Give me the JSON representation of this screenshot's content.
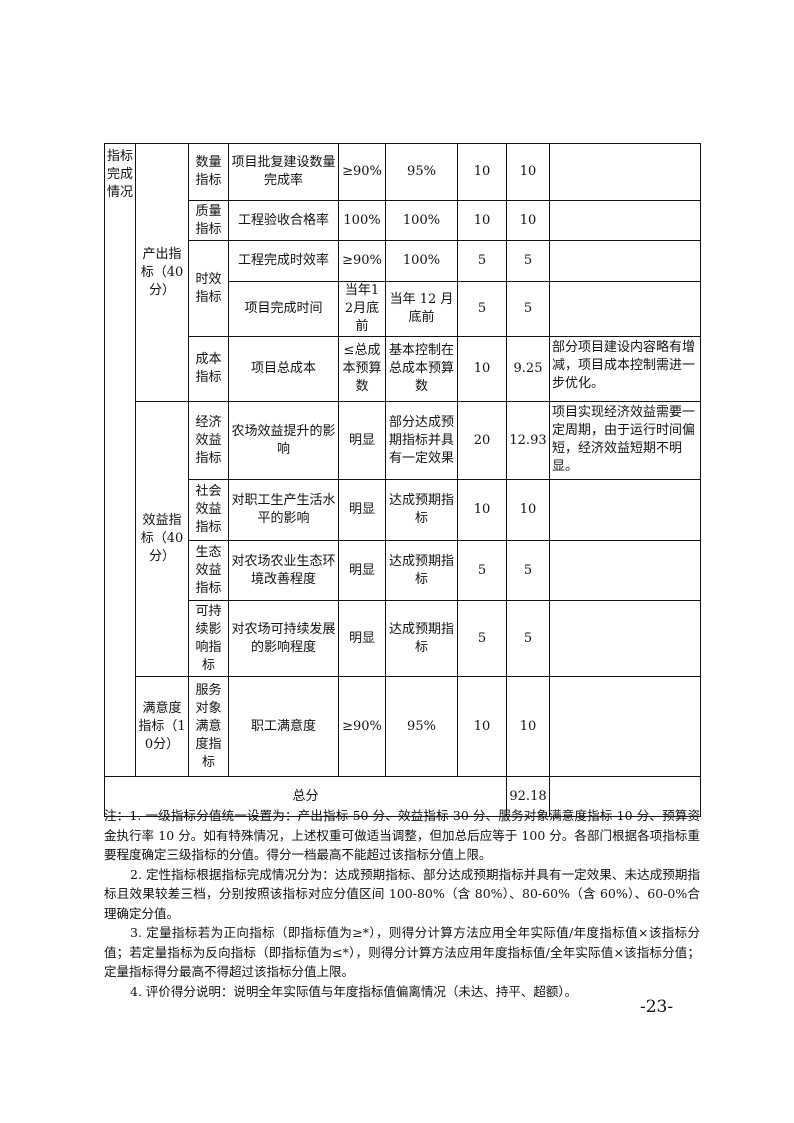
{
  "table": {
    "section_label": "指标完成情况",
    "groups": {
      "output": "产出指标（40分）",
      "benefit": "效益指标（40分）",
      "satisfaction": "满意度指标（10分）"
    },
    "rows": [
      {
        "sub": "数量指标",
        "name": "项目批复建设数量完成率",
        "target": "≥90%",
        "actual": "95%",
        "weight": "10",
        "score": "10",
        "remark": ""
      },
      {
        "sub": "质量指标",
        "name": "工程验收合格率",
        "target": "100%",
        "actual": "100%",
        "weight": "10",
        "score": "10",
        "remark": ""
      },
      {
        "sub": "时效指标",
        "name": "工程完成时效率",
        "target": "≥90%",
        "actual": "100%",
        "weight": "5",
        "score": "5",
        "remark": ""
      },
      {
        "sub": "",
        "name": "项目完成时间",
        "target": "当年12月底前",
        "actual": "当年 12 月底前",
        "weight": "5",
        "score": "5",
        "remark": ""
      },
      {
        "sub": "成本指标",
        "name": "项目总成本",
        "target": "≤总成本预算数",
        "actual": "基本控制在总成本预算数",
        "weight": "10",
        "score": "9.25",
        "remark": "部分项目建设内容略有增减，项目成本控制需进一步优化。"
      },
      {
        "sub": "经济效益指标",
        "name": "农场效益提升的影响",
        "target": "明显",
        "actual": "部分达成预期指标并具有一定效果",
        "weight": "20",
        "score": "12.93",
        "remark": "项目实现经济效益需要一定周期，由于运行时间偏短，经济效益短期不明显。"
      },
      {
        "sub": "社会效益指标",
        "name": "对职工生产生活水平的影响",
        "target": "明显",
        "actual": "达成预期指标",
        "weight": "10",
        "score": "10",
        "remark": ""
      },
      {
        "sub": "生态效益指标",
        "name": "对农场农业生态环境改善程度",
        "target": "明显",
        "actual": "达成预期指标",
        "weight": "5",
        "score": "5",
        "remark": ""
      },
      {
        "sub": "可持续影响指标",
        "name": "对农场可持续发展的影响程度",
        "target": "明显",
        "actual": "达成预期指标",
        "weight": "5",
        "score": "5",
        "remark": ""
      },
      {
        "sub": "服务对象满意度指标",
        "name": "职工满意度",
        "target": "≥90%",
        "actual": "95%",
        "weight": "10",
        "score": "10",
        "remark": ""
      }
    ],
    "total_label": "总分",
    "total_score": "92.18",
    "total_remark": ""
  },
  "notes": [
    "注：1. 一级指标分值统一设置为：产出指标 50 分、效益指标 30 分、服务对象满意度指标 10 分、预算资金执行率 10 分。如有特殊情况，上述权重可做适当调整，但加总后应等于 100 分。各部门根据各项指标重要程度确定三级指标的分值。得分一档最高不能超过该指标分值上限。",
    "2. 定性指标根据指标完成情况分为：达成预期指标、部分达成预期指标并具有一定效果、未达成预期指标且效果较差三档，分别按照该指标对应分值区间 100-80%（含 80%）、80-60%（含 60%）、60-0%合理确定分值。",
    "3. 定量指标若为正向指标（即指标值为≥*），则得分计算方法应用全年实际值/年度指标值×该指标分值；若定量指标为反向指标（即指标值为≤*），则得分计算方法应用年度指标值/全年实际值×该指标分值；定量指标得分最高不得超过该指标分值上限。",
    "4. 评价得分说明：说明全年实际值与年度指标值偏离情况（未达、持平、超额）。"
  ],
  "page_number": "-23-"
}
